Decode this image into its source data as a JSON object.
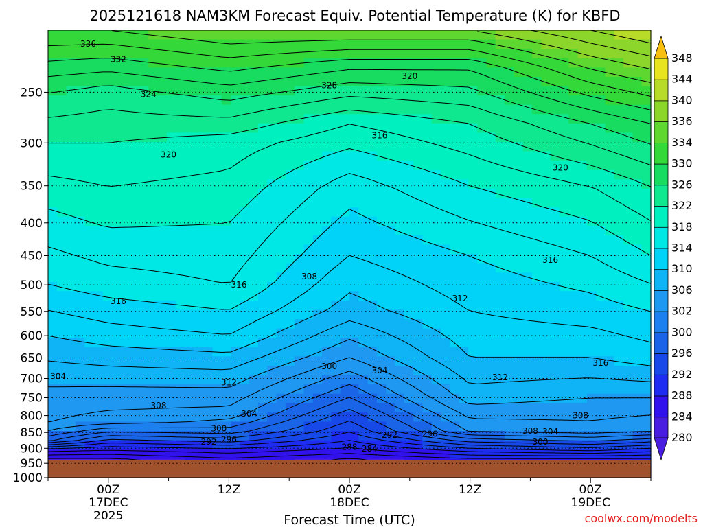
{
  "chart_data": {
    "type": "heatmap",
    "title": "2025121618 NAM3KM Forecast Equiv. Potential Temperature (K) for KBFD",
    "xlabel": "Forecast Time (UTC)",
    "ylabel": "",
    "y_scale": "log",
    "y_reversed": true,
    "ylim": [
      1000,
      200
    ],
    "y_ticks": [
      250,
      300,
      350,
      400,
      450,
      500,
      550,
      600,
      650,
      700,
      750,
      800,
      850,
      900,
      950,
      1000
    ],
    "x_ticks": [
      {
        "time": "2025-12-17 00Z",
        "label": [
          "00Z",
          "17DEC",
          "2025"
        ]
      },
      {
        "time": "2025-12-17 12Z",
        "label": [
          "12Z"
        ]
      },
      {
        "time": "2025-12-18 00Z",
        "label": [
          "00Z",
          "18DEC"
        ]
      },
      {
        "time": "2025-12-18 12Z",
        "label": [
          "12Z"
        ]
      },
      {
        "time": "2025-12-19 00Z",
        "label": [
          "00Z",
          "19DEC"
        ]
      }
    ],
    "xlim": [
      "2025-12-16 18Z",
      "2025-12-19 06Z"
    ],
    "colorbar": {
      "unit": "K",
      "levels": [
        280,
        284,
        288,
        292,
        296,
        300,
        302,
        306,
        310,
        314,
        318,
        322,
        326,
        330,
        334,
        336,
        340,
        344,
        348
      ],
      "tick_labels": [
        "280",
        "284",
        "288",
        "292",
        "296",
        "300",
        "302",
        "306",
        "310",
        "314",
        "318",
        "322",
        "326",
        "330",
        "334",
        "336",
        "340",
        "344",
        "348"
      ],
      "colors": [
        "#4a1ee0",
        "#3212ec",
        "#1d2cf0",
        "#1748e8",
        "#1a64e8",
        "#1c80ee",
        "#1e98f0",
        "#0eb4f6",
        "#00d2f8",
        "#00e8e6",
        "#00f0c0",
        "#10e890",
        "#18dc60",
        "#34d838",
        "#5ed830",
        "#8cd62c",
        "#b8da28",
        "#e8e420",
        "#f8be10"
      ]
    },
    "theta_e_profiles": [
      {
        "time": "2025-12-16 18Z",
        "values": [
          [
            1000,
            280
          ],
          [
            930,
            284
          ],
          [
            900,
            290
          ],
          [
            870,
            300
          ],
          [
            820,
            304
          ],
          [
            720,
            306
          ],
          [
            600,
            310
          ],
          [
            500,
            314
          ],
          [
            380,
            318
          ],
          [
            300,
            322
          ],
          [
            250,
            326
          ],
          [
            200,
            334
          ]
        ]
      },
      {
        "time": "2025-12-17 00Z",
        "values": [
          [
            1000,
            280
          ],
          [
            930,
            284
          ],
          [
            900,
            289
          ],
          [
            860,
            296
          ],
          [
            820,
            303
          ],
          [
            720,
            306
          ],
          [
            600,
            311
          ],
          [
            500,
            315
          ],
          [
            380,
            319
          ],
          [
            300,
            322
          ],
          [
            250,
            325
          ],
          [
            200,
            334
          ]
        ]
      },
      {
        "time": "2025-12-17 12Z",
        "values": [
          [
            1000,
            282
          ],
          [
            930,
            286
          ],
          [
            900,
            290
          ],
          [
            860,
            298
          ],
          [
            800,
            303
          ],
          [
            700,
            307
          ],
          [
            600,
            312
          ],
          [
            500,
            316
          ],
          [
            400,
            318
          ],
          [
            300,
            321
          ],
          [
            250,
            327
          ],
          [
            200,
            336
          ]
        ]
      },
      {
        "time": "2025-12-18 00Z",
        "values": [
          [
            1000,
            282
          ],
          [
            930,
            284
          ],
          [
            900,
            288
          ],
          [
            850,
            292
          ],
          [
            750,
            298
          ],
          [
            650,
            304
          ],
          [
            550,
            309
          ],
          [
            450,
            312
          ],
          [
            350,
            315
          ],
          [
            280,
            320
          ],
          [
            230,
            328
          ],
          [
            200,
            336
          ]
        ]
      },
      {
        "time": "2025-12-18 12Z",
        "values": [
          [
            1000,
            282
          ],
          [
            930,
            286
          ],
          [
            900,
            292
          ],
          [
            850,
            302
          ],
          [
            750,
            307
          ],
          [
            650,
            310
          ],
          [
            550,
            312
          ],
          [
            450,
            314
          ],
          [
            350,
            318
          ],
          [
            280,
            322
          ],
          [
            230,
            328
          ],
          [
            200,
            336
          ]
        ]
      },
      {
        "time": "2025-12-19 00Z",
        "values": [
          [
            1000,
            282
          ],
          [
            930,
            286
          ],
          [
            900,
            294
          ],
          [
            850,
            303
          ],
          [
            750,
            306
          ],
          [
            650,
            310
          ],
          [
            550,
            313
          ],
          [
            450,
            316
          ],
          [
            350,
            320
          ],
          [
            280,
            326
          ],
          [
            230,
            334
          ],
          [
            200,
            340
          ]
        ]
      },
      {
        "time": "2025-12-19 06Z",
        "values": [
          [
            1000,
            282
          ],
          [
            930,
            286
          ],
          [
            900,
            292
          ],
          [
            850,
            302
          ],
          [
            750,
            306
          ],
          [
            650,
            311
          ],
          [
            550,
            314
          ],
          [
            450,
            318
          ],
          [
            350,
            322
          ],
          [
            280,
            328
          ],
          [
            230,
            336
          ],
          [
            200,
            342
          ]
        ]
      }
    ],
    "contour_labels": [
      {
        "text": "336",
        "time": "2025-12-16 22Z",
        "p": 210
      },
      {
        "text": "332",
        "time": "2025-12-17 01Z",
        "p": 222
      },
      {
        "text": "324",
        "time": "2025-12-17 04Z",
        "p": 252
      },
      {
        "text": "328",
        "time": "2025-12-17 22Z",
        "p": 244
      },
      {
        "text": "320",
        "time": "2025-12-18 06Z",
        "p": 236
      },
      {
        "text": "316",
        "time": "2025-12-18 03Z",
        "p": 292
      },
      {
        "text": "320",
        "time": "2025-12-17 06Z",
        "p": 313
      },
      {
        "text": "320",
        "time": "2025-12-18 21Z",
        "p": 328
      },
      {
        "text": "316",
        "time": "2025-12-18 20Z",
        "p": 457
      },
      {
        "text": "316",
        "time": "2025-12-17 01Z",
        "p": 530
      },
      {
        "text": "316",
        "time": "2025-12-17 13Z",
        "p": 500
      },
      {
        "text": "308",
        "time": "2025-12-17 20Z",
        "p": 485
      },
      {
        "text": "312",
        "time": "2025-12-18 11Z",
        "p": 525
      },
      {
        "text": "300",
        "time": "2025-12-17 22Z",
        "p": 670
      },
      {
        "text": "304",
        "time": "2025-12-18 03Z",
        "p": 680
      },
      {
        "text": "304",
        "time": "2025-12-16 19Z",
        "p": 695
      },
      {
        "text": "316",
        "time": "2025-12-19 01Z",
        "p": 662
      },
      {
        "text": "312",
        "time": "2025-12-17 12Z",
        "p": 710
      },
      {
        "text": "312",
        "time": "2025-12-18 15Z",
        "p": 697
      },
      {
        "text": "308",
        "time": "2025-12-17 05Z",
        "p": 772
      },
      {
        "text": "304",
        "time": "2025-12-17 14Z",
        "p": 795
      },
      {
        "text": "300",
        "time": "2025-12-17 11Z",
        "p": 838
      },
      {
        "text": "292",
        "time": "2025-12-17 10Z",
        "p": 880
      },
      {
        "text": "296",
        "time": "2025-12-17 12Z",
        "p": 872
      },
      {
        "text": "292",
        "time": "2025-12-18 04Z",
        "p": 858
      },
      {
        "text": "296",
        "time": "2025-12-18 08Z",
        "p": 855
      },
      {
        "text": "288",
        "time": "2025-12-18 00Z",
        "p": 896
      },
      {
        "text": "284",
        "time": "2025-12-18 02Z",
        "p": 902
      },
      {
        "text": "308",
        "time": "2025-12-18 18Z",
        "p": 845
      },
      {
        "text": "304",
        "time": "2025-12-18 20Z",
        "p": 848
      },
      {
        "text": "300",
        "time": "2025-12-18 19Z",
        "p": 880
      },
      {
        "text": "308",
        "time": "2025-12-18 23Z",
        "p": 800
      }
    ],
    "terrain_top_p": 940,
    "terrain_color": "#a0522d",
    "grid": "horizontal dotted"
  },
  "credit": "coolwx.com/modelts"
}
